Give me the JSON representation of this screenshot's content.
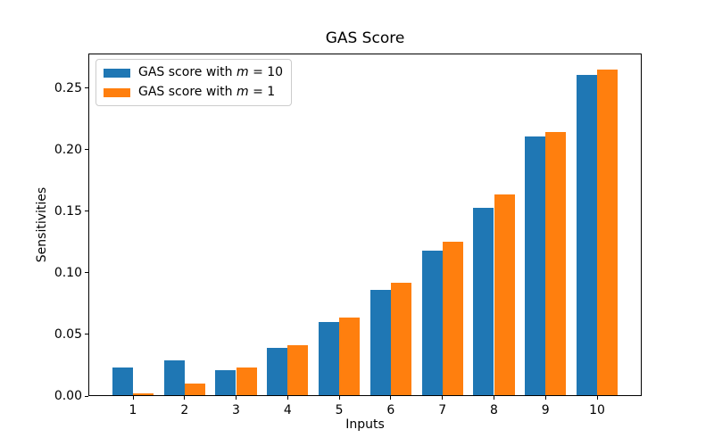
{
  "figure": {
    "title": "GAS Score",
    "xlabel": "Inputs",
    "ylabel": "Sensitivities"
  },
  "chart_data": {
    "type": "bar",
    "title": "GAS Score",
    "xlabel": "Inputs",
    "ylabel": "Sensitivities",
    "categories": [
      1,
      2,
      3,
      4,
      5,
      6,
      7,
      8,
      9,
      10
    ],
    "xtick_labels": [
      "1",
      "2",
      "3",
      "4",
      "5",
      "6",
      "7",
      "8",
      "9",
      "10"
    ],
    "series": [
      {
        "id": "m10",
        "name": "GAS score with m = 10",
        "label_prefix": "GAS score with ",
        "label_var": "m",
        "label_suffix": " = 10",
        "color": "#1f77b4",
        "values": [
          0.023,
          0.029,
          0.021,
          0.039,
          0.06,
          0.086,
          0.118,
          0.153,
          0.211,
          0.261
        ]
      },
      {
        "id": "m1",
        "name": "GAS score with m = 1",
        "label_prefix": "GAS score with ",
        "label_var": "m",
        "label_suffix": " = 1",
        "color": "#ff7f0e",
        "values": [
          0.002,
          0.01,
          0.023,
          0.041,
          0.064,
          0.092,
          0.125,
          0.164,
          0.214,
          0.265
        ]
      }
    ],
    "bar_width": 0.4,
    "xlim": [
      0.135,
      10.865
    ],
    "ylim": [
      0,
      0.278
    ],
    "yticks": [
      0.0,
      0.05,
      0.1,
      0.15,
      0.2,
      0.25
    ],
    "ytick_labels": [
      "0.00",
      "0.05",
      "0.10",
      "0.15",
      "0.20",
      "0.25"
    ],
    "grid": false,
    "legend_position": "upper-left"
  },
  "colors": {
    "background": "#ffffff",
    "spine": "#000000",
    "text": "#000000",
    "legend_border": "#cccccc",
    "series_blue": "#1f77b4",
    "series_orange": "#ff7f0e"
  }
}
